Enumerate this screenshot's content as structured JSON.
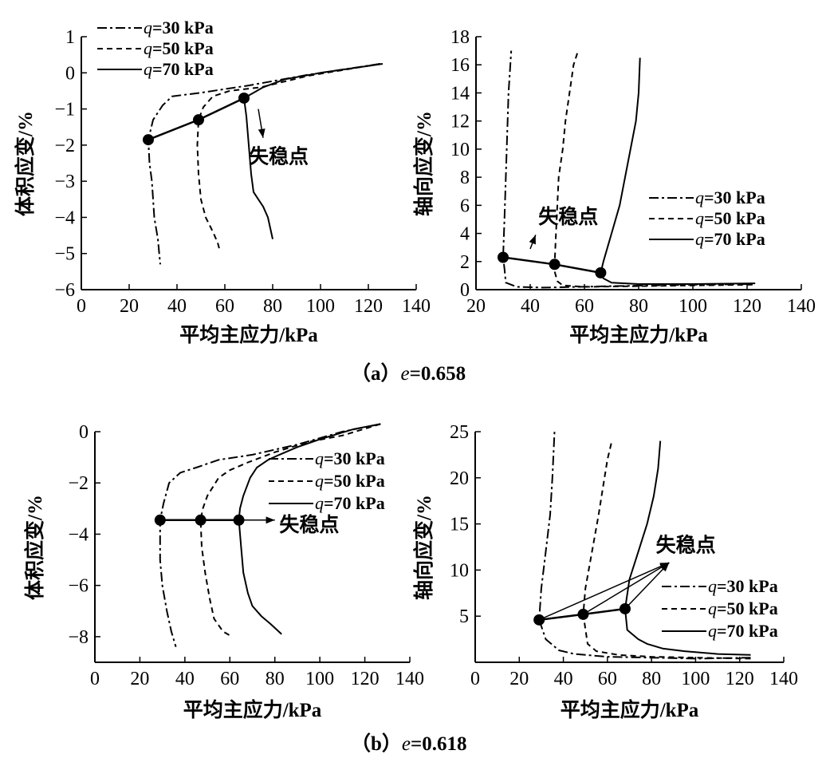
{
  "chart_data": [
    {
      "id": "a_left",
      "type": "line",
      "xlabel": "平均主应力/kPa",
      "ylabel": "体积应变/%",
      "xlim": [
        0,
        140
      ],
      "ylim": [
        -6,
        1
      ],
      "xticks": [
        "0",
        "20",
        "40",
        "60",
        "80",
        "100",
        "120",
        "140"
      ],
      "yticks": [
        "1",
        "0",
        "−1",
        "−2",
        "−3",
        "−4",
        "−5",
        "−6"
      ],
      "legend": [
        {
          "q": "q",
          "text": "=30 kPa",
          "style": "dashdot"
        },
        {
          "q": "q",
          "text": "=50 kPa",
          "style": "dashed"
        },
        {
          "q": "q",
          "text": "=70 kPa",
          "style": "solid"
        }
      ],
      "series": [
        {
          "name": "q=30 kPa",
          "style": "dashdot",
          "points": [
            [
              125,
              0.25
            ],
            [
              95,
              -0.05
            ],
            [
              70,
              -0.35
            ],
            [
              50,
              -0.55
            ],
            [
              38,
              -0.65
            ],
            [
              34,
              -0.9
            ],
            [
              30,
              -1.3
            ],
            [
              28,
              -1.85
            ],
            [
              28.5,
              -2.5
            ],
            [
              29.5,
              -3
            ],
            [
              30.5,
              -4
            ],
            [
              32,
              -4.6
            ],
            [
              33,
              -5.3
            ]
          ]
        },
        {
          "name": "q=50 kPa",
          "style": "dashed",
          "points": [
            [
              125,
              0.25
            ],
            [
              95,
              -0.08
            ],
            [
              75,
              -0.4
            ],
            [
              62,
              -0.5
            ],
            [
              55,
              -0.65
            ],
            [
              51,
              -0.95
            ],
            [
              49,
              -1.3
            ],
            [
              48.5,
              -2
            ],
            [
              49,
              -2.8
            ],
            [
              50,
              -3.5
            ],
            [
              52,
              -4
            ],
            [
              55,
              -4.4
            ],
            [
              57,
              -4.7
            ],
            [
              58,
              -4.95
            ]
          ]
        },
        {
          "name": "q=70 kPa",
          "style": "solid",
          "points": [
            [
              126,
              0.25
            ],
            [
              100,
              0
            ],
            [
              85,
              -0.18
            ],
            [
              76,
              -0.4
            ],
            [
              72,
              -0.55
            ],
            [
              68,
              -0.7
            ],
            [
              69,
              -1.2
            ],
            [
              70,
              -2
            ],
            [
              71,
              -2.8
            ],
            [
              72,
              -3.3
            ],
            [
              74,
              -3.5
            ],
            [
              76,
              -3.7
            ],
            [
              78,
              -4
            ],
            [
              79,
              -4.3
            ],
            [
              80,
              -4.6
            ]
          ]
        }
      ],
      "instability_points": [
        [
          28,
          -1.85
        ],
        [
          49,
          -1.3
        ],
        [
          68,
          -0.7
        ]
      ],
      "annotation": {
        "text": "失稳点",
        "arrow_from": [
          74,
          -1
        ],
        "arrow_to": [
          76,
          -1.8
        ],
        "label_at": [
          70,
          -2.5
        ]
      }
    },
    {
      "id": "a_right",
      "type": "line",
      "xlabel": "平均主应力/kPa",
      "ylabel": "轴向应变/%",
      "xlim": [
        20,
        140
      ],
      "ylim": [
        0,
        18
      ],
      "xticks": [
        "20",
        "40",
        "60",
        "80",
        "100",
        "120",
        "140"
      ],
      "yticks": [
        "0",
        "2",
        "4",
        "6",
        "8",
        "10",
        "12",
        "14",
        "16",
        "18"
      ],
      "legend": [
        {
          "q": "q",
          "text": "=30 kPa",
          "style": "dashdot"
        },
        {
          "q": "q",
          "text": "=50 kPa",
          "style": "dashed"
        },
        {
          "q": "q",
          "text": "=70 kPa",
          "style": "solid"
        }
      ],
      "series": [
        {
          "name": "q=30 kPa",
          "style": "dashdot",
          "points": [
            [
              122,
              0.4
            ],
            [
              100,
              0.35
            ],
            [
              70,
              0.25
            ],
            [
              45,
              0.15
            ],
            [
              35,
              0.2
            ],
            [
              31,
              0.5
            ],
            [
              30.5,
              1.5
            ],
            [
              30,
              2.3
            ],
            [
              30.5,
              5
            ],
            [
              31,
              8
            ],
            [
              31.5,
              11
            ],
            [
              32,
              14
            ],
            [
              33,
              17
            ]
          ]
        },
        {
          "name": "q=50 kPa",
          "style": "dashed",
          "points": [
            [
              122,
              0.35
            ],
            [
              100,
              0.3
            ],
            [
              80,
              0.25
            ],
            [
              60,
              0.2
            ],
            [
              52,
              0.3
            ],
            [
              50,
              0.6
            ],
            [
              49,
              1.3
            ],
            [
              49,
              1.8
            ],
            [
              49.5,
              4
            ],
            [
              50,
              6
            ],
            [
              50.5,
              8
            ],
            [
              52,
              10
            ],
            [
              53,
              12
            ],
            [
              54.5,
              14
            ],
            [
              56,
              16
            ],
            [
              57.5,
              16.9
            ]
          ]
        },
        {
          "name": "q=70 kPa",
          "style": "solid",
          "points": [
            [
              123,
              0.45
            ],
            [
              100,
              0.4
            ],
            [
              80,
              0.4
            ],
            [
              70,
              0.5
            ],
            [
              67,
              0.8
            ],
            [
              66,
              1.2
            ],
            [
              67,
              2
            ],
            [
              70,
              4
            ],
            [
              73,
              6
            ],
            [
              75,
              8
            ],
            [
              77,
              10
            ],
            [
              79,
              12
            ],
            [
              80,
              14
            ],
            [
              80.5,
              16.5
            ]
          ]
        }
      ],
      "instability_points": [
        [
          30,
          2.3
        ],
        [
          49,
          1.8
        ],
        [
          66,
          1.2
        ]
      ],
      "annotation": {
        "text": "失稳点",
        "arrow_from": [
          40,
          2.9
        ],
        "arrow_to": [
          42,
          3.9
        ],
        "label_at": [
          43,
          4.7
        ]
      }
    },
    {
      "id": "b_left",
      "type": "line",
      "xlabel": "平均主应力/kPa",
      "ylabel": "体积应变/%",
      "xlim": [
        0,
        140
      ],
      "ylim": [
        -9,
        0
      ],
      "xticks": [
        "0",
        "20",
        "40",
        "60",
        "80",
        "100",
        "120",
        "140"
      ],
      "yticks": [
        "0",
        "−2",
        "−4",
        "−6",
        "−8"
      ],
      "legend": [
        {
          "q": "q",
          "text": "=30 kPa",
          "style": "dashdot"
        },
        {
          "q": "q",
          "text": "=50 kPa",
          "style": "dashed"
        },
        {
          "q": "q",
          "text": "=70 kPa",
          "style": "solid"
        }
      ],
      "series": [
        {
          "name": "q=30 kPa",
          "style": "dashdot",
          "points": [
            [
              127,
              0.3
            ],
            [
              110,
              0
            ],
            [
              90,
              -0.5
            ],
            [
              70,
              -0.9
            ],
            [
              55,
              -1.1
            ],
            [
              45,
              -1.4
            ],
            [
              38,
              -1.6
            ],
            [
              33,
              -2
            ],
            [
              30.5,
              -2.8
            ],
            [
              29,
              -3.45
            ],
            [
              29,
              -5
            ],
            [
              30,
              -6
            ],
            [
              32,
              -7
            ],
            [
              34,
              -7.8
            ],
            [
              36,
              -8.4
            ]
          ]
        },
        {
          "name": "q=50 kPa",
          "style": "dashed",
          "points": [
            [
              127,
              0.3
            ],
            [
              110,
              -0.15
            ],
            [
              95,
              -0.4
            ],
            [
              80,
              -0.8
            ],
            [
              68,
              -1.2
            ],
            [
              60,
              -1.5
            ],
            [
              55,
              -1.8
            ],
            [
              50,
              -2.5
            ],
            [
              48,
              -3
            ],
            [
              47,
              -3.45
            ],
            [
              47.5,
              -4.5
            ],
            [
              49,
              -5.5
            ],
            [
              51,
              -6.5
            ],
            [
              53,
              -7.3
            ],
            [
              57,
              -7.8
            ],
            [
              61,
              -8
            ]
          ]
        },
        {
          "name": "q=70 kPa",
          "style": "solid",
          "points": [
            [
              127,
              0.3
            ],
            [
              115,
              0.1
            ],
            [
              100,
              -0.3
            ],
            [
              90,
              -0.6
            ],
            [
              82,
              -0.9
            ],
            [
              77,
              -1.1
            ],
            [
              72,
              -1.4
            ],
            [
              69,
              -1.8
            ],
            [
              66,
              -2.5
            ],
            [
              64.5,
              -3
            ],
            [
              64,
              -3.45
            ],
            [
              65,
              -4.5
            ],
            [
              66,
              -5.5
            ],
            [
              68,
              -6.3
            ],
            [
              70,
              -6.8
            ],
            [
              74,
              -7.2
            ],
            [
              78,
              -7.5
            ],
            [
              83,
              -7.9
            ]
          ]
        }
      ],
      "instability_points": [
        [
          29,
          -3.45
        ],
        [
          47,
          -3.45
        ],
        [
          64,
          -3.45
        ]
      ],
      "annotation": {
        "text": "失稳点",
        "arrow_from": [
          64,
          -3.45
        ],
        "arrow_to": [
          80,
          -3.45
        ],
        "label_at": [
          82,
          -3.9
        ]
      }
    },
    {
      "id": "b_right",
      "type": "line",
      "xlabel": "平均主应力/kPa",
      "ylabel": "轴向应变/%",
      "xlim": [
        0,
        140
      ],
      "ylim": [
        0,
        25
      ],
      "xticks": [
        "0",
        "20",
        "40",
        "60",
        "80",
        "100",
        "120",
        "140"
      ],
      "yticks": [
        "5",
        "10",
        "15",
        "20",
        "25"
      ],
      "legend": [
        {
          "q": "q",
          "text": "=30 kPa",
          "style": "dashdot"
        },
        {
          "q": "q",
          "text": "=50 kPa",
          "style": "dashed"
        },
        {
          "q": "q",
          "text": "=70 kPa",
          "style": "solid"
        }
      ],
      "series": [
        {
          "name": "q=30 kPa",
          "style": "dashdot",
          "points": [
            [
              125,
              0.5
            ],
            [
              100,
              0.4
            ],
            [
              80,
              0.5
            ],
            [
              60,
              0.6
            ],
            [
              45,
              0.9
            ],
            [
              38,
              1.3
            ],
            [
              32,
              2.5
            ],
            [
              29,
              4.6
            ],
            [
              30,
              8
            ],
            [
              32,
              12
            ],
            [
              34,
              16
            ],
            [
              35,
              20
            ],
            [
              36,
              25
            ]
          ]
        },
        {
          "name": "q=50 kPa",
          "style": "dashed",
          "points": [
            [
              125,
              0.4
            ],
            [
              100,
              0.5
            ],
            [
              80,
              0.6
            ],
            [
              65,
              0.8
            ],
            [
              55,
              1.2
            ],
            [
              51,
              2
            ],
            [
              49,
              5.2
            ],
            [
              50,
              8
            ],
            [
              53,
              12
            ],
            [
              56,
              16
            ],
            [
              58,
              19
            ],
            [
              60,
              22
            ],
            [
              62,
              24
            ]
          ]
        },
        {
          "name": "q=70 kPa",
          "style": "solid",
          "points": [
            [
              125,
              0.8
            ],
            [
              110,
              0.9
            ],
            [
              95,
              1.2
            ],
            [
              85,
              1.5
            ],
            [
              78,
              2
            ],
            [
              74,
              2.5
            ],
            [
              69,
              3.5
            ],
            [
              68,
              5.8
            ],
            [
              70,
              9
            ],
            [
              74,
              12
            ],
            [
              78,
              15
            ],
            [
              81,
              18
            ],
            [
              83,
              21
            ],
            [
              84,
              24
            ]
          ]
        }
      ],
      "instability_points": [
        [
          29,
          4.6
        ],
        [
          49,
          5.2
        ],
        [
          68,
          5.8
        ]
      ],
      "annotation": {
        "text": "失稳点",
        "arrow_to": [
          88,
          10.8
        ],
        "label_at": [
          82,
          12
        ]
      }
    }
  ],
  "captions": {
    "a": {
      "open": "（a）",
      "var": "e",
      "val": "=0.658"
    },
    "b": {
      "open": "（b）",
      "var": "e",
      "val": "=0.618"
    }
  }
}
